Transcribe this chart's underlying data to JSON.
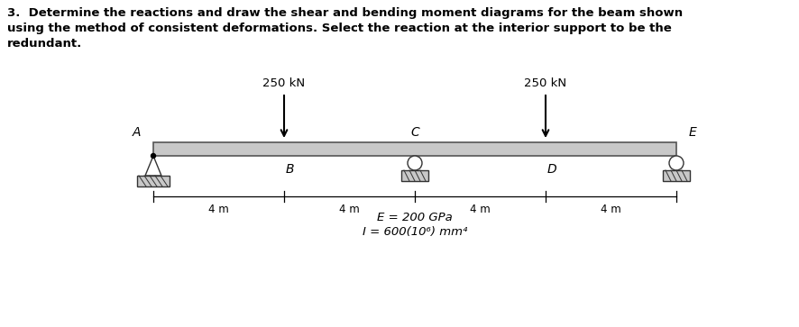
{
  "title_line1": "3.  Determine the reactions and draw the shear and bending moment diagrams for the beam shown",
  "title_line2": "using the method of consistent deformations. Select the reaction at the interior support to be the",
  "title_line3": "redundant.",
  "load1_label": "250 kN",
  "load2_label": "250 kN",
  "E_label": "E = 200 GPa",
  "I_label": "I = 600(10⁶) mm⁴",
  "dim_label": "4 m",
  "beam_color": "#c8c8c8",
  "beam_outline": "#555555",
  "support_fill": "#c8c8c8",
  "support_edge": "#333333",
  "background_color": "#ffffff",
  "text_color": "#000000",
  "fig_width": 8.86,
  "fig_height": 3.63
}
